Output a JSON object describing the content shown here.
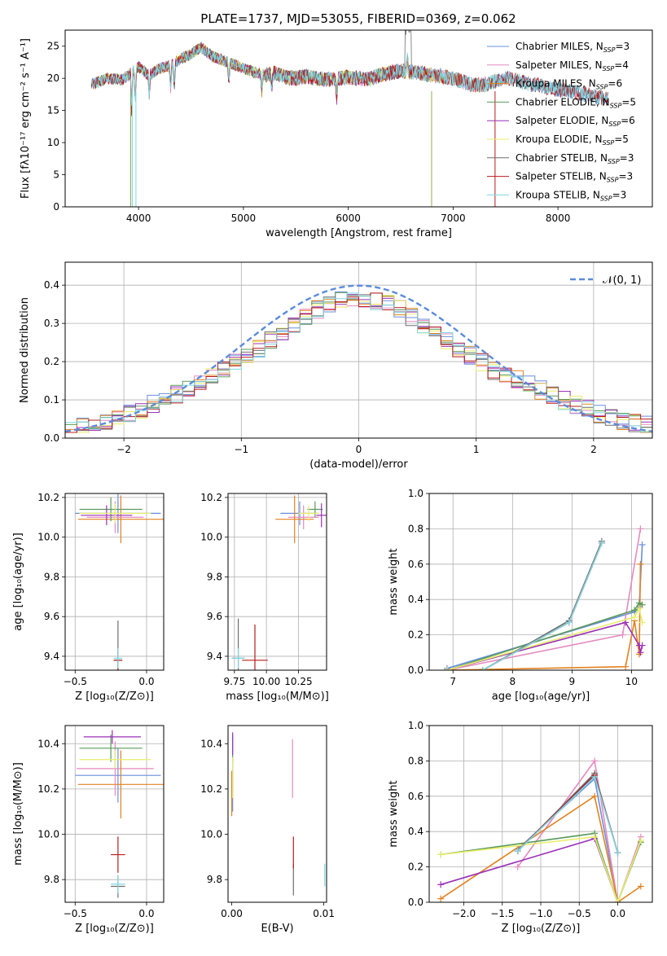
{
  "colors": {
    "Chabrier MILES": "#6a8fdc",
    "Salpeter MILES": "#e68abf",
    "Kroupa MILES": "#e3821f",
    "Chabrier ELODIE": "#5a9a5a",
    "Salpeter ELODIE": "#9b30b8",
    "Kroupa ELODIE": "#e8ee6a",
    "Chabrier STELIB": "#6e6e6e",
    "Salpeter STELIB": "#b81c1c",
    "Kroupa STELIB": "#7fd7e3"
  },
  "chart_data": [
    {
      "id": "spectrum",
      "type": "line",
      "title": "PLATE=1737, MJD=53055, FIBERID=0369, z=0.062",
      "xlabel": "wavelength [Angstrom, rest frame]",
      "ylabel": "Flux [fλ10⁻¹⁷ erg cm⁻² s⁻¹ A⁻¹]",
      "xlim": [
        3300,
        8900
      ],
      "ylim": [
        0,
        27.5
      ],
      "xticks": [
        4000,
        5000,
        6000,
        7000,
        8000
      ],
      "yticks": [
        0,
        5,
        10,
        15,
        20,
        25
      ],
      "legend_position": "top-right",
      "continuum": [
        [
          3550,
          19.0
        ],
        [
          3700,
          20.0
        ],
        [
          3850,
          19.8
        ],
        [
          4000,
          21.8
        ],
        [
          4100,
          20.5
        ],
        [
          4200,
          21.5
        ],
        [
          4300,
          22.0
        ],
        [
          4400,
          23.0
        ],
        [
          4500,
          23.8
        ],
        [
          4600,
          24.8
        ],
        [
          4700,
          23.5
        ],
        [
          4800,
          22.8
        ],
        [
          4900,
          22.2
        ],
        [
          5000,
          21.5
        ],
        [
          5100,
          21.0
        ],
        [
          5200,
          20.5
        ],
        [
          5300,
          20.8
        ],
        [
          5400,
          20.2
        ],
        [
          5500,
          20.0
        ],
        [
          5600,
          20.3
        ],
        [
          5700,
          20.0
        ],
        [
          5800,
          19.8
        ],
        [
          5900,
          20.0
        ],
        [
          6000,
          20.2
        ],
        [
          6100,
          20.0
        ],
        [
          6200,
          19.8
        ],
        [
          6300,
          20.5
        ],
        [
          6400,
          20.8
        ],
        [
          6500,
          21.2
        ],
        [
          6600,
          21.0
        ],
        [
          6700,
          20.8
        ],
        [
          6800,
          20.5
        ],
        [
          6900,
          20.3
        ],
        [
          7000,
          20.0
        ],
        [
          7100,
          19.4
        ],
        [
          7200,
          19.0
        ],
        [
          7300,
          19.0
        ],
        [
          7400,
          19.5
        ],
        [
          7500,
          20.0
        ],
        [
          7600,
          19.8
        ],
        [
          7700,
          19.2
        ],
        [
          7800,
          19.0
        ],
        [
          7900,
          18.6
        ],
        [
          8000,
          18.2
        ],
        [
          8100,
          18.0
        ],
        [
          8200,
          17.8
        ],
        [
          8300,
          17.4
        ],
        [
          8400,
          17.0
        ],
        [
          8480,
          16.8
        ]
      ],
      "series": [
        {
          "name": "Chabrier MILES, N_SSP=3",
          "x_range": [
            3550,
            8480
          ]
        },
        {
          "name": "Salpeter MILES, N_SSP=4",
          "x_range": [
            3550,
            7400
          ]
        },
        {
          "name": "Kroupa MILES, N_SSP=6",
          "x_range": [
            3550,
            7400
          ]
        },
        {
          "name": "Chabrier ELODIE, N_SSP=5",
          "x_range": [
            3550,
            6800
          ]
        },
        {
          "name": "Salpeter ELODIE, N_SSP=6",
          "x_range": [
            3550,
            6800
          ]
        },
        {
          "name": "Kroupa ELODIE, N_SSP=5",
          "x_range": [
            3550,
            6800
          ]
        },
        {
          "name": "Chabrier STELIB, N_SSP=3",
          "x_range": [
            3550,
            8480
          ]
        },
        {
          "name": "Salpeter STELIB, N_SSP=3",
          "x_range": [
            3550,
            8480
          ]
        },
        {
          "name": "Kroupa STELIB, N_SSP=3",
          "x_range": [
            3550,
            8480
          ]
        }
      ],
      "legend": [
        {
          "name": "Chabrier MILES",
          "n": "3"
        },
        {
          "name": "Salpeter MILES",
          "n": "4"
        },
        {
          "name": "Kroupa MILES",
          "n": "6"
        },
        {
          "name": "Chabrier ELODIE",
          "n": "5"
        },
        {
          "name": "Salpeter ELODIE",
          "n": "6"
        },
        {
          "name": "Kroupa ELODIE",
          "n": "5"
        },
        {
          "name": "Chabrier STELIB",
          "n": "3"
        },
        {
          "name": "Salpeter STELIB",
          "n": "3"
        },
        {
          "name": "Kroupa STELIB",
          "n": "3"
        }
      ]
    },
    {
      "id": "histogram",
      "type": "line",
      "xlabel": "(data-model)/error",
      "ylabel": "Normed distribution",
      "xlim": [
        -2.5,
        2.5
      ],
      "ylim": [
        0,
        0.46
      ],
      "xticks": [
        -2,
        -1,
        0,
        1,
        2
      ],
      "yticks": [
        0.0,
        0.1,
        0.2,
        0.3,
        0.4
      ],
      "grid": true,
      "bin_width": 0.1,
      "reference": {
        "label": "𝒩(0, 1)",
        "mean": 0,
        "sigma": 1
      },
      "legend_position": "top-right"
    },
    {
      "id": "age-vs-Z",
      "type": "scatter",
      "xlabel": "Z [log₁₀(Z/Z⊙)]",
      "ylabel": "age [log₁₀(age/yr)]",
      "xlim": [
        -0.57,
        0.12
      ],
      "ylim": [
        9.33,
        10.22
      ],
      "xticks": [
        -0.5,
        0.0
      ],
      "yticks": [
        9.4,
        9.6,
        9.8,
        10.0,
        10.2
      ],
      "grid": true,
      "points": [
        {
          "model": "Chabrier MILES",
          "x": -0.2,
          "y": 10.12,
          "xerr": 0.3,
          "yerr": 0.1
        },
        {
          "model": "Salpeter MILES",
          "x": -0.22,
          "y": 10.1,
          "xerr": 0.2,
          "yerr": 0.08
        },
        {
          "model": "Kroupa MILES",
          "x": -0.18,
          "y": 10.09,
          "xerr": 0.3,
          "yerr": 0.12
        },
        {
          "model": "Chabrier ELODIE",
          "x": -0.25,
          "y": 10.14,
          "xerr": 0.22,
          "yerr": 0.06
        },
        {
          "model": "Salpeter ELODIE",
          "x": -0.28,
          "y": 10.11,
          "xerr": 0.18,
          "yerr": 0.05
        },
        {
          "model": "Kroupa ELODIE",
          "x": -0.22,
          "y": 10.12,
          "xerr": 0.25,
          "yerr": 0.05
        },
        {
          "model": "Chabrier STELIB",
          "x": -0.2,
          "y": 9.38,
          "xerr": 0.03,
          "yerr": 0.2
        },
        {
          "model": "Salpeter STELIB",
          "x": -0.2,
          "y": 9.38,
          "xerr": 0.03,
          "yerr": 0.05
        },
        {
          "model": "Kroupa STELIB",
          "x": -0.2,
          "y": 9.39,
          "xerr": 0.03,
          "yerr": 0.05
        }
      ]
    },
    {
      "id": "age-vs-mass",
      "type": "scatter",
      "xlabel": "mass [log₁₀(M/M⊙)]",
      "ylabel": "",
      "xlim": [
        9.7,
        10.47
      ],
      "ylim": [
        9.33,
        10.22
      ],
      "xticks": [
        9.75,
        10.0,
        10.25
      ],
      "xticklabels": [
        "9.75",
        "10.00",
        "10.25"
      ],
      "yticks": [
        9.4,
        9.6,
        9.8,
        10.0,
        10.2
      ],
      "grid": true,
      "points": [
        {
          "model": "Chabrier MILES",
          "x": 10.26,
          "y": 10.12,
          "xerr": 0.15,
          "yerr": 0.06
        },
        {
          "model": "Salpeter MILES",
          "x": 10.29,
          "y": 10.1,
          "xerr": 0.12,
          "yerr": 0.06
        },
        {
          "model": "Kroupa MILES",
          "x": 10.22,
          "y": 10.09,
          "xerr": 0.15,
          "yerr": 0.12
        },
        {
          "model": "Chabrier ELODIE",
          "x": 10.38,
          "y": 10.14,
          "xerr": 0.06,
          "yerr": 0.04
        },
        {
          "model": "Salpeter ELODIE",
          "x": 10.43,
          "y": 10.11,
          "xerr": 0.04,
          "yerr": 0.06
        },
        {
          "model": "Kroupa ELODIE",
          "x": 10.33,
          "y": 10.12,
          "xerr": 0.08,
          "yerr": 0.04
        },
        {
          "model": "Chabrier STELIB",
          "x": 9.78,
          "y": 9.39,
          "xerr": 0.05,
          "yerr": 0.2
        },
        {
          "model": "Salpeter STELIB",
          "x": 9.91,
          "y": 9.38,
          "xerr": 0.1,
          "yerr": 0.18
        },
        {
          "model": "Kroupa STELIB",
          "x": 9.78,
          "y": 9.39,
          "xerr": 0.05,
          "yerr": 0.05
        }
      ]
    },
    {
      "id": "massweight-vs-age",
      "type": "line",
      "xlabel": "age [log₁₀(age/yr)]",
      "ylabel": "mass weight",
      "xlim": [
        6.6,
        10.35
      ],
      "ylim": [
        0,
        1.0
      ],
      "xticks": [
        7,
        8,
        9,
        10
      ],
      "yticks": [
        0.0,
        0.2,
        0.4,
        0.6,
        0.8,
        1.0
      ],
      "grid": true,
      "series": [
        {
          "name": "Chabrier MILES",
          "x": [
            6.9,
            10.05,
            10.13,
            10.18
          ],
          "y": [
            0.01,
            0.33,
            0.36,
            0.71
          ]
        },
        {
          "name": "Salpeter MILES",
          "x": [
            6.9,
            9.85,
            10.15
          ],
          "y": [
            0.0,
            0.2,
            0.8
          ]
        },
        {
          "name": "Kroupa MILES",
          "x": [
            6.9,
            9.9,
            10.05,
            10.13,
            10.15
          ],
          "y": [
            0.0,
            0.02,
            0.28,
            0.09,
            0.6
          ]
        },
        {
          "name": "Chabrier ELODIE",
          "x": [
            6.9,
            10.05,
            10.13,
            10.18
          ],
          "y": [
            0.0,
            0.34,
            0.38,
            0.37
          ]
        },
        {
          "name": "Salpeter ELODIE",
          "x": [
            6.9,
            9.9,
            10.13,
            10.15,
            10.18
          ],
          "y": [
            0.0,
            0.27,
            0.14,
            0.1,
            0.14
          ]
        },
        {
          "name": "Kroupa ELODIE",
          "x": [
            6.9,
            10.05,
            10.13,
            10.18
          ],
          "y": [
            0.0,
            0.3,
            0.35,
            0.27
          ]
        },
        {
          "name": "Chabrier STELIB",
          "x": [
            7.5,
            8.95,
            9.5
          ],
          "y": [
            0.0,
            0.28,
            0.73
          ]
        },
        {
          "name": "Salpeter STELIB",
          "x": [
            7.5,
            8.95,
            9.5
          ],
          "y": [
            0.0,
            0.27,
            0.72
          ]
        },
        {
          "name": "Kroupa STELIB",
          "x": [
            7.5,
            8.95,
            9.5
          ],
          "y": [
            0.0,
            0.27,
            0.72
          ]
        }
      ]
    },
    {
      "id": "mass-vs-Z",
      "type": "scatter",
      "xlabel": "Z [log₁₀(Z/Z⊙)]",
      "ylabel": "mass [log₁₀(M/M⊙)]",
      "xlim": [
        -0.57,
        0.12
      ],
      "ylim": [
        9.7,
        10.48
      ],
      "xticks": [
        -0.5,
        0.0
      ],
      "yticks": [
        9.8,
        10.0,
        10.2,
        10.4
      ],
      "grid": true,
      "points": [
        {
          "model": "Chabrier MILES",
          "x": -0.2,
          "y": 10.26,
          "xerr": 0.3,
          "yerr": 0.12
        },
        {
          "model": "Salpeter MILES",
          "x": -0.22,
          "y": 10.29,
          "xerr": 0.27,
          "yerr": 0.12
        },
        {
          "model": "Kroupa MILES",
          "x": -0.18,
          "y": 10.22,
          "xerr": 0.3,
          "yerr": 0.15
        },
        {
          "model": "Chabrier ELODIE",
          "x": -0.25,
          "y": 10.38,
          "xerr": 0.22,
          "yerr": 0.06
        },
        {
          "model": "Salpeter ELODIE",
          "x": -0.24,
          "y": 10.43,
          "xerr": 0.2,
          "yerr": 0.03
        },
        {
          "model": "Kroupa ELODIE",
          "x": -0.22,
          "y": 10.33,
          "xerr": 0.25,
          "yerr": 0.04
        },
        {
          "model": "Chabrier STELIB",
          "x": -0.2,
          "y": 9.77,
          "xerr": 0.05,
          "yerr": 0.05
        },
        {
          "model": "Salpeter STELIB",
          "x": -0.2,
          "y": 9.91,
          "xerr": 0.05,
          "yerr": 0.08
        },
        {
          "model": "Kroupa STELIB",
          "x": -0.2,
          "y": 9.78,
          "xerr": 0.05,
          "yerr": 0.04
        }
      ]
    },
    {
      "id": "mass-vs-ebv",
      "type": "scatter",
      "xlabel": "E(B-V)",
      "ylabel": "",
      "xlim": [
        -0.0004,
        0.0103
      ],
      "ylim": [
        9.7,
        10.48
      ],
      "xticks": [
        0.0,
        0.01
      ],
      "xticklabels": [
        "0.00",
        "0.01"
      ],
      "yticks": [
        9.8,
        10.0,
        10.2,
        10.4
      ],
      "grid": false,
      "points": [
        {
          "model": "Chabrier MILES",
          "x": 0.0001,
          "y": 10.22,
          "yerr": 0.12
        },
        {
          "model": "Salpeter MILES",
          "x": 0.0066,
          "y": 10.29,
          "yerr": 0.13
        },
        {
          "model": "Kroupa MILES",
          "x": 0.0,
          "y": 10.18,
          "yerr": 0.1
        },
        {
          "model": "Chabrier ELODIE",
          "x": 0.0001,
          "y": 10.38,
          "yerr": 0.06
        },
        {
          "model": "Salpeter ELODIE",
          "x": 0.0001,
          "y": 10.4,
          "yerr": 0.05
        },
        {
          "model": "Kroupa ELODIE",
          "x": 0.0001,
          "y": 10.25,
          "yerr": 0.09
        },
        {
          "model": "Chabrier STELIB",
          "x": 0.0067,
          "y": 9.8,
          "yerr": 0.07
        },
        {
          "model": "Salpeter STELIB",
          "x": 0.0067,
          "y": 9.92,
          "yerr": 0.07
        },
        {
          "model": "Kroupa STELIB",
          "x": 0.0101,
          "y": 9.82,
          "yerr": 0.05
        }
      ]
    },
    {
      "id": "massweight-vs-Z",
      "type": "line",
      "xlabel": "Z [log₁₀(Z/Z⊙)]",
      "ylabel": "mass weight",
      "xlim": [
        -2.45,
        0.45
      ],
      "ylim": [
        0,
        1.0
      ],
      "xticks": [
        -2.0,
        -1.5,
        -1.0,
        -0.5,
        0.0
      ],
      "yticks": [
        0.0,
        0.2,
        0.4,
        0.6,
        0.8,
        1.0
      ],
      "grid": true,
      "series": [
        {
          "name": "Chabrier MILES",
          "x": [
            -1.3,
            -0.3,
            0.0
          ],
          "y": [
            0.3,
            0.7,
            0.0
          ]
        },
        {
          "name": "Salpeter MILES",
          "x": [
            -1.3,
            -0.3,
            0.0,
            0.3
          ],
          "y": [
            0.2,
            0.8,
            0.0,
            0.37
          ]
        },
        {
          "name": "Kroupa MILES",
          "x": [
            -2.3,
            -0.3,
            0.0,
            0.3
          ],
          "y": [
            0.02,
            0.6,
            0.0,
            0.09
          ]
        },
        {
          "name": "Chabrier ELODIE",
          "x": [
            -2.3,
            -0.3,
            0.0,
            0.3
          ],
          "y": [
            0.27,
            0.39,
            0.0,
            0.34
          ]
        },
        {
          "name": "Salpeter ELODIE",
          "x": [
            -2.3,
            -0.3,
            0.0
          ],
          "y": [
            0.1,
            0.36,
            0.0
          ]
        },
        {
          "name": "Kroupa ELODIE",
          "x": [
            -2.3,
            -0.3,
            0.0,
            0.3
          ],
          "y": [
            0.27,
            0.37,
            0.0,
            0.35
          ]
        },
        {
          "name": "Chabrier STELIB",
          "x": [
            -1.3,
            -0.3,
            0.0
          ],
          "y": [
            0.29,
            0.73,
            0.28
          ]
        },
        {
          "name": "Salpeter STELIB",
          "x": [
            -1.3,
            -0.3,
            0.0
          ],
          "y": [
            0.29,
            0.72,
            0.28
          ]
        },
        {
          "name": "Kroupa STELIB",
          "x": [
            -1.3,
            -0.3,
            0.0
          ],
          "y": [
            0.29,
            0.71,
            0.28
          ]
        }
      ]
    }
  ]
}
